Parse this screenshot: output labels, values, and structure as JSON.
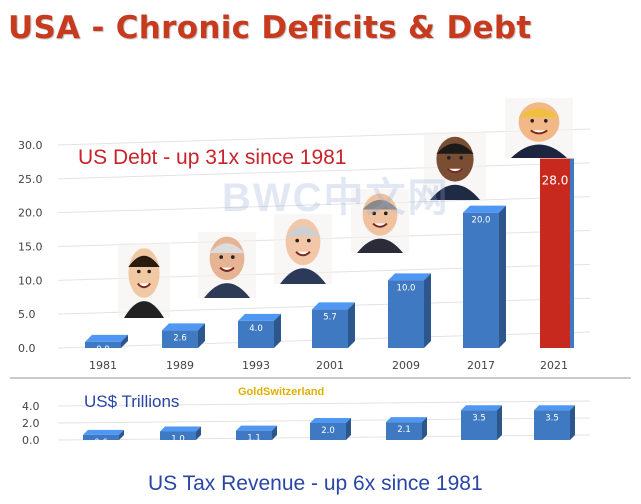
{
  "title": "USA - Chronic Deficits & Debt",
  "watermark": "BWC中文网",
  "source": "GoldSwitzerland",
  "colors": {
    "title": "#c83a1e",
    "bar": "#3f79c2",
    "highlight_bar": "#c8291f",
    "caption_red": "#c8232a",
    "caption_blue": "#2946a6"
  },
  "chart_data": [
    {
      "type": "bar",
      "title": "US Debt  -  up 31x since 1981",
      "categories": [
        "1981",
        "1989",
        "1993",
        "2001",
        "2009",
        "2017",
        "2021"
      ],
      "values": [
        0.9,
        2.6,
        4.0,
        5.7,
        10.0,
        20.0,
        28.0
      ],
      "value_labels": [
        "0.9",
        "2.6",
        "4.0",
        "5.7",
        "10.0",
        "20.0",
        "28.0"
      ],
      "highlight_index": 6,
      "ylim": [
        0,
        30
      ],
      "yticks": [
        "0.0",
        "5.0",
        "10.0",
        "15.0",
        "20.0",
        "25.0",
        "30.0"
      ],
      "gridlines": true
    },
    {
      "type": "bar",
      "title": "US Tax Revenue  - up 6x since 1981",
      "ylabel": "US$ Trillions",
      "categories": [
        "1981",
        "1989",
        "1993",
        "2001",
        "2009",
        "2017",
        "2021"
      ],
      "values": [
        0.6,
        1.0,
        1.1,
        2.0,
        2.1,
        3.5,
        3.5
      ],
      "value_labels": [
        "0.6",
        "1.0",
        "1.1",
        "2.0",
        "2.1",
        "3.5",
        "3.5"
      ],
      "ylim": [
        0,
        4
      ],
      "yticks": [
        "0.0",
        "2.0",
        "4.0"
      ],
      "gridlines": true
    }
  ],
  "portraits": [
    {
      "name": "reagan-portrait"
    },
    {
      "name": "bush-sr-portrait"
    },
    {
      "name": "clinton-portrait"
    },
    {
      "name": "bush-jr-portrait"
    },
    {
      "name": "obama-portrait"
    },
    {
      "name": "trump-portrait"
    }
  ]
}
